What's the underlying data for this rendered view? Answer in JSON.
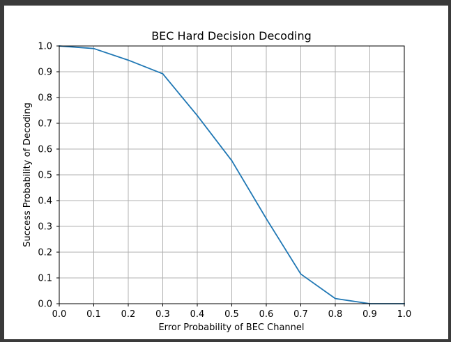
{
  "chart_data": {
    "type": "line",
    "title": "BEC Hard Decision Decoding",
    "xlabel": "Error Probability of BEC Channel",
    "ylabel": "Success Probability of Decoding",
    "xlim": [
      0.0,
      1.0
    ],
    "ylim": [
      0.0,
      1.0
    ],
    "xticks": [
      "0.0",
      "0.1",
      "0.2",
      "0.3",
      "0.4",
      "0.5",
      "0.6",
      "0.7",
      "0.8",
      "0.9",
      "1.0"
    ],
    "yticks": [
      "0.0",
      "0.1",
      "0.2",
      "0.3",
      "0.4",
      "0.5",
      "0.6",
      "0.7",
      "0.8",
      "0.9",
      "1.0"
    ],
    "grid": true,
    "series": [
      {
        "color": "#1f77b4",
        "x": [
          0.0,
          0.1,
          0.2,
          0.3,
          0.4,
          0.5,
          0.6,
          0.7,
          0.8,
          0.9,
          1.0
        ],
        "y": [
          1.0,
          0.99,
          0.945,
          0.892,
          0.73,
          0.555,
          0.33,
          0.115,
          0.02,
          0.0,
          0.0
        ]
      }
    ]
  },
  "colors": {
    "frame": "#3a3a3a",
    "background": "#ffffff",
    "grid": "#b0b0b0",
    "axes": "#000000",
    "line": "#1f77b4"
  }
}
